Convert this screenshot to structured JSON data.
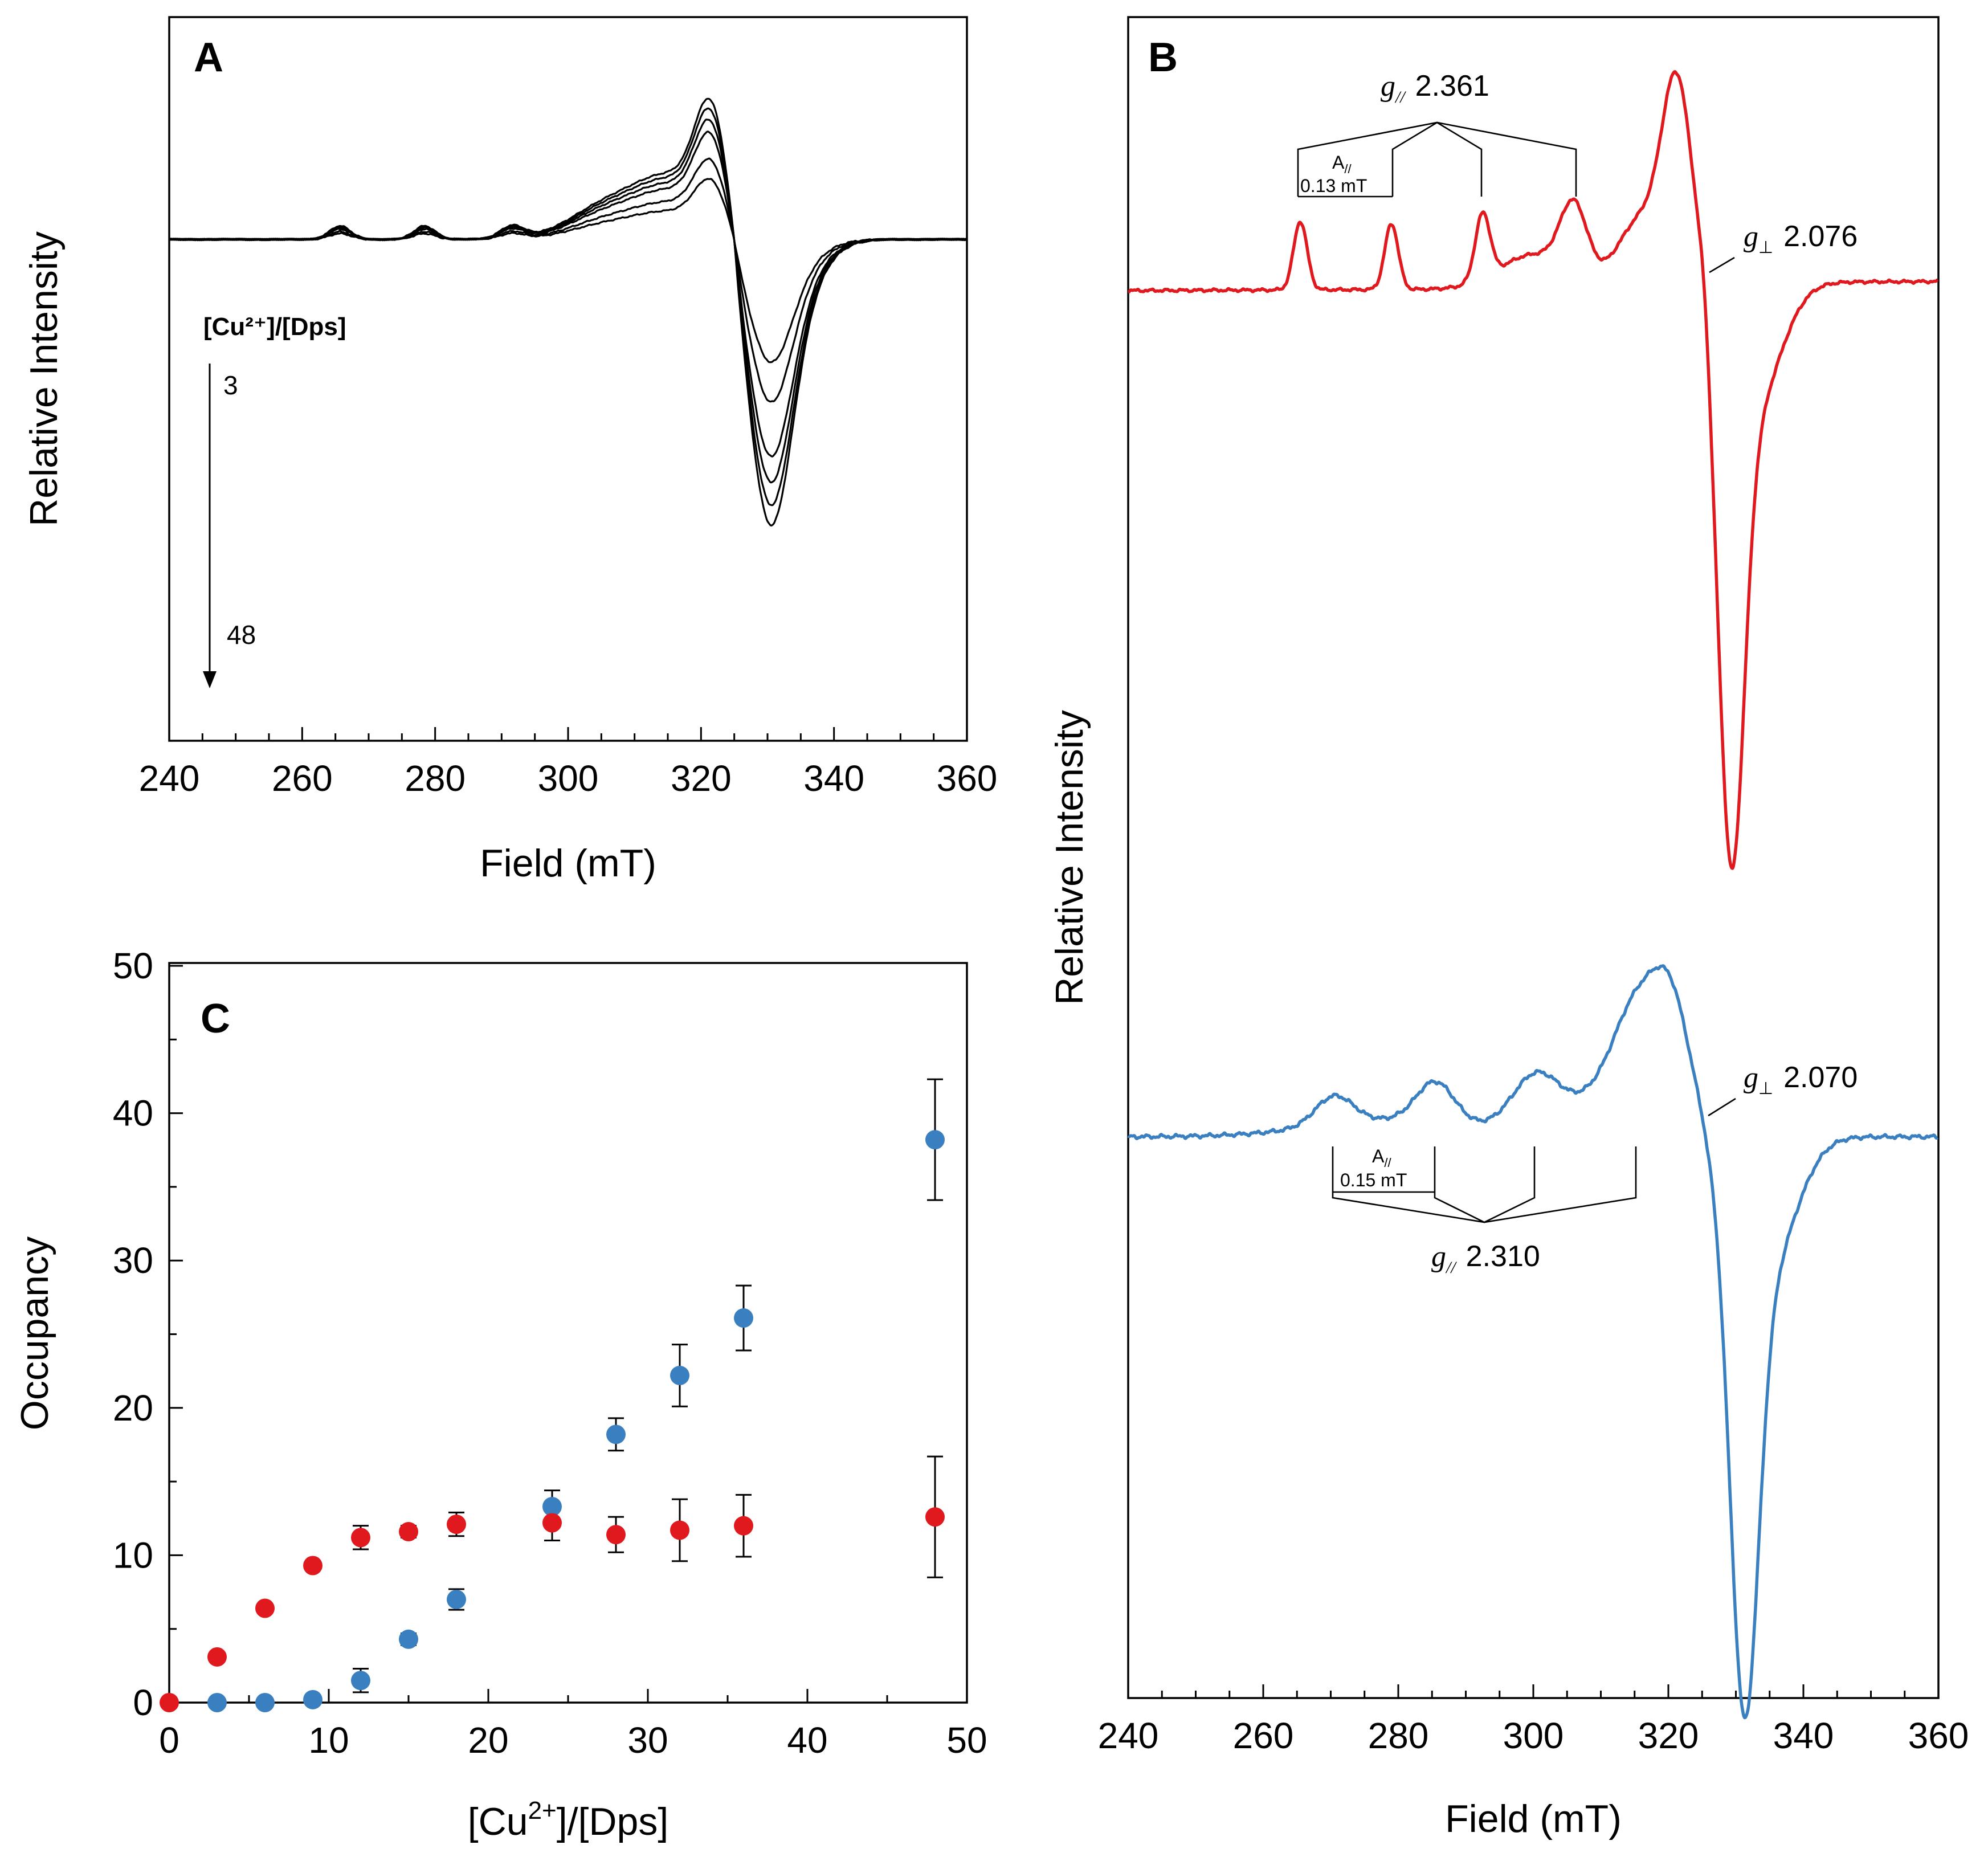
{
  "colors": {
    "red": "#e0191f",
    "blue": "#3a7fc0",
    "black": "#000000"
  },
  "panelA": {
    "label": "A",
    "xlabel": "Field (mT)",
    "ylabel": "Relative Intensity",
    "xticks": [
      "240",
      "260",
      "280",
      "300",
      "320",
      "340",
      "360"
    ],
    "ratio_title": "[Cu²⁺]/[Dps]",
    "ratio_start": "3",
    "ratio_end": "48"
  },
  "panelB": {
    "label": "B",
    "xlabel": "Field (mT)",
    "ylabel": "Relative Intensity",
    "xticks": [
      "240",
      "260",
      "280",
      "300",
      "320",
      "340",
      "360"
    ],
    "red": {
      "gpar_symbol": "g",
      "gpar_sub": "//",
      "gpar_value": "2.361",
      "apar_symbol": "A",
      "apar_sub": "//",
      "apar_value": "0.13 mT",
      "gperp_symbol": "g",
      "gperp_sub": "⊥",
      "gperp_value": "2.076"
    },
    "blue": {
      "gpar_symbol": "g",
      "gpar_sub": "//",
      "gpar_value": "2.310",
      "apar_symbol": "A",
      "apar_sub": "//",
      "apar_value": "0.15 mT",
      "gperp_symbol": "g",
      "gperp_sub": "⊥",
      "gperp_value": "2.070"
    }
  },
  "panelC": {
    "label": "C",
    "xlabel_main": "[Cu",
    "xlabel_sup": "2+",
    "xlabel_rest": "]/[Dps]",
    "ylabel": "Occupancy",
    "xticks": [
      "0",
      "10",
      "20",
      "30",
      "40",
      "50"
    ],
    "yticks": [
      "0",
      "10",
      "20",
      "30",
      "40",
      "50"
    ]
  },
  "chart_data": [
    {
      "id": "A",
      "type": "line",
      "title": "A",
      "xlabel": "Field (mT)",
      "ylabel": "Relative Intensity",
      "xlim": [
        240,
        360
      ],
      "annotation": "[Cu2+]/[Dps] 3 → 48",
      "series": [
        {
          "name": "trace-1",
          "amplitude": 0.43
        },
        {
          "name": "trace-2",
          "amplitude": 0.57
        },
        {
          "name": "trace-3",
          "amplitude": 0.76
        },
        {
          "name": "trace-4",
          "amplitude": 0.85
        },
        {
          "name": "trace-5",
          "amplitude": 0.93
        },
        {
          "name": "trace-6",
          "amplitude": 1.0
        }
      ]
    },
    {
      "id": "B",
      "type": "line",
      "title": "B",
      "xlabel": "Field (mT)",
      "ylabel": "Relative Intensity",
      "xlim": [
        240,
        360
      ],
      "series": [
        {
          "name": "red spectrum",
          "color": "#e0191f",
          "g_parallel": 2.361,
          "A_parallel_mT": 0.13,
          "g_perp": 2.076,
          "hyperfine_peaks_mT": [
            265.5,
            279.0,
            292.5,
            306.0
          ]
        },
        {
          "name": "blue spectrum",
          "color": "#3a7fc0",
          "g_parallel": 2.31,
          "A_parallel_mT": 0.15,
          "g_perp": 2.07,
          "hyperfine_peaks_mT": [
            270.5,
            285.5,
            300.5,
            315.5
          ]
        }
      ]
    },
    {
      "id": "C",
      "type": "scatter",
      "title": "C",
      "xlabel": "[Cu2+]/[Dps]",
      "ylabel": "Occupancy",
      "xlim": [
        0,
        50
      ],
      "ylim": [
        0,
        50
      ],
      "series": [
        {
          "name": "red",
          "color": "#e0191f",
          "x": [
            0,
            3,
            6,
            9,
            12,
            15,
            18,
            24,
            28,
            32,
            36,
            48
          ],
          "y": [
            0,
            3.1,
            6.4,
            9.3,
            11.2,
            11.6,
            12.1,
            12.2,
            11.4,
            11.7,
            12.0,
            12.6
          ],
          "err": [
            0,
            0,
            0,
            0,
            0.8,
            0.4,
            0.8,
            1.2,
            1.2,
            2.1,
            2.1,
            4.1
          ]
        },
        {
          "name": "blue",
          "color": "#3a7fc0",
          "x": [
            3,
            6,
            9,
            12,
            15,
            18,
            24,
            28,
            32,
            36,
            48
          ],
          "y": [
            0,
            0,
            0.2,
            1.5,
            4.3,
            7.0,
            13.3,
            18.2,
            22.2,
            26.1,
            38.2
          ],
          "err": [
            0,
            0,
            0,
            0.8,
            0.4,
            0.7,
            1.1,
            1.1,
            2.1,
            2.2,
            4.1
          ]
        }
      ]
    }
  ]
}
